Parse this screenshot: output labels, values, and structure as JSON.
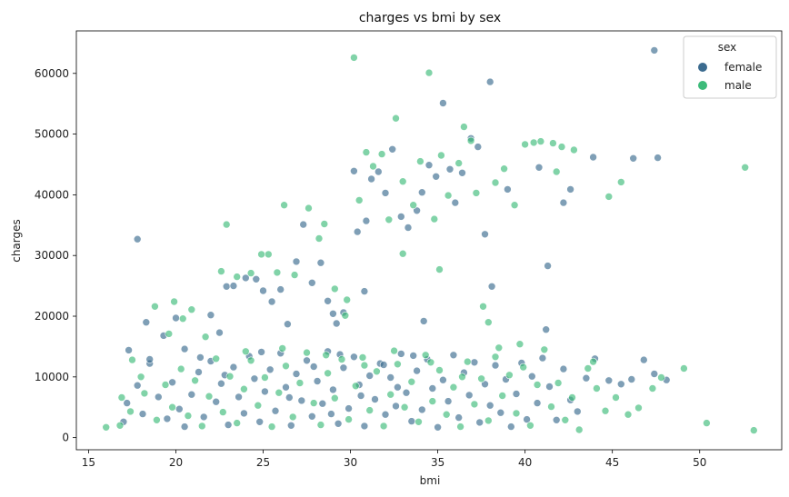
{
  "chart_data": {
    "type": "scatter",
    "title": "charges vs bmi by sex",
    "xlabel": "bmi",
    "ylabel": "charges",
    "xlim": [
      14.3,
      54.7
    ],
    "ylim": [
      -2000,
      67000
    ],
    "xticks": [
      15,
      20,
      25,
      30,
      35,
      40,
      45,
      50
    ],
    "yticks": [
      0,
      10000,
      20000,
      30000,
      40000,
      50000,
      60000
    ],
    "grid": false,
    "legend": {
      "title": "sex",
      "placement": "top-right"
    },
    "series": [
      {
        "name": "female",
        "color": "#3b6b8f",
        "points": [
          [
            17.3,
            14400
          ],
          [
            17.8,
            32700
          ],
          [
            18.3,
            19000
          ],
          [
            18.5,
            12200
          ],
          [
            19.3,
            16800
          ],
          [
            20.0,
            19700
          ],
          [
            20.5,
            14600
          ],
          [
            21.4,
            13200
          ],
          [
            22.0,
            20200
          ],
          [
            22.5,
            17300
          ],
          [
            22.9,
            24900
          ],
          [
            23.3,
            25000
          ],
          [
            24.0,
            26300
          ],
          [
            24.6,
            26100
          ],
          [
            25.0,
            24200
          ],
          [
            25.5,
            22400
          ],
          [
            26.0,
            24400
          ],
          [
            26.4,
            18700
          ],
          [
            26.9,
            29000
          ],
          [
            27.3,
            35100
          ],
          [
            27.8,
            25500
          ],
          [
            28.3,
            28800
          ],
          [
            28.7,
            22500
          ],
          [
            29.2,
            18800
          ],
          [
            29.6,
            20600
          ],
          [
            30.2,
            43900
          ],
          [
            30.4,
            33900
          ],
          [
            30.9,
            35700
          ],
          [
            31.2,
            42600
          ],
          [
            31.6,
            43800
          ],
          [
            32.0,
            40300
          ],
          [
            32.4,
            47500
          ],
          [
            32.9,
            36400
          ],
          [
            33.3,
            34600
          ],
          [
            33.8,
            37400
          ],
          [
            34.1,
            40400
          ],
          [
            34.5,
            44900
          ],
          [
            34.9,
            43000
          ],
          [
            35.3,
            55100
          ],
          [
            35.7,
            44200
          ],
          [
            36.0,
            38700
          ],
          [
            36.4,
            43600
          ],
          [
            36.9,
            49300
          ],
          [
            37.3,
            47900
          ],
          [
            37.7,
            33500
          ],
          [
            38.0,
            58600
          ],
          [
            38.1,
            24900
          ],
          [
            39.0,
            40900
          ],
          [
            40.8,
            44500
          ],
          [
            41.3,
            28300
          ],
          [
            42.2,
            38700
          ],
          [
            42.6,
            40900
          ],
          [
            43.9,
            46200
          ],
          [
            46.2,
            46000
          ],
          [
            47.4,
            63800
          ],
          [
            47.6,
            46100
          ],
          [
            41.2,
            17800
          ],
          [
            34.2,
            19200
          ],
          [
            30.8,
            24100
          ],
          [
            29.0,
            20400
          ],
          [
            17.0,
            2600
          ],
          [
            17.2,
            5700
          ],
          [
            17.8,
            8600
          ],
          [
            18.1,
            3900
          ],
          [
            18.5,
            12900
          ],
          [
            19.0,
            6700
          ],
          [
            19.5,
            3100
          ],
          [
            19.8,
            9100
          ],
          [
            20.2,
            4700
          ],
          [
            20.5,
            1800
          ],
          [
            20.9,
            7100
          ],
          [
            21.3,
            10800
          ],
          [
            21.6,
            3400
          ],
          [
            22.0,
            12600
          ],
          [
            22.3,
            5900
          ],
          [
            22.6,
            8900
          ],
          [
            23.0,
            2100
          ],
          [
            23.3,
            11600
          ],
          [
            23.6,
            6700
          ],
          [
            23.9,
            4000
          ],
          [
            24.2,
            13400
          ],
          [
            24.5,
            9700
          ],
          [
            24.8,
            2600
          ],
          [
            25.1,
            7600
          ],
          [
            25.4,
            11200
          ],
          [
            25.7,
            4400
          ],
          [
            26.0,
            13900
          ],
          [
            26.3,
            8300
          ],
          [
            26.6,
            2000
          ],
          [
            26.9,
            10500
          ],
          [
            27.2,
            6100
          ],
          [
            27.5,
            12700
          ],
          [
            27.8,
            3500
          ],
          [
            28.1,
            9300
          ],
          [
            28.4,
            5600
          ],
          [
            28.7,
            14200
          ],
          [
            29.0,
            7900
          ],
          [
            29.3,
            2300
          ],
          [
            29.6,
            11500
          ],
          [
            29.9,
            4800
          ],
          [
            30.2,
            13300
          ],
          [
            30.5,
            8700
          ],
          [
            30.8,
            1900
          ],
          [
            31.1,
            10200
          ],
          [
            31.4,
            6300
          ],
          [
            31.7,
            12200
          ],
          [
            32.0,
            3800
          ],
          [
            32.3,
            9900
          ],
          [
            32.6,
            5200
          ],
          [
            32.9,
            13800
          ],
          [
            33.2,
            7400
          ],
          [
            33.5,
            2700
          ],
          [
            33.8,
            11000
          ],
          [
            34.1,
            4600
          ],
          [
            34.4,
            12900
          ],
          [
            34.7,
            8100
          ],
          [
            35.0,
            1700
          ],
          [
            35.3,
            9500
          ],
          [
            35.6,
            6000
          ],
          [
            35.9,
            13600
          ],
          [
            36.2,
            3300
          ],
          [
            36.5,
            10700
          ],
          [
            36.8,
            7000
          ],
          [
            37.1,
            12400
          ],
          [
            37.4,
            2500
          ],
          [
            37.7,
            8800
          ],
          [
            38.0,
            5300
          ],
          [
            38.3,
            11900
          ],
          [
            38.6,
            4100
          ],
          [
            38.9,
            9600
          ],
          [
            39.2,
            1800
          ],
          [
            39.5,
            7200
          ],
          [
            39.8,
            12300
          ],
          [
            40.1,
            3000
          ],
          [
            40.4,
            10100
          ],
          [
            40.7,
            5700
          ],
          [
            41.0,
            13100
          ],
          [
            41.4,
            8400
          ],
          [
            41.8,
            2900
          ],
          [
            42.2,
            11300
          ],
          [
            42.6,
            6200
          ],
          [
            43.0,
            4300
          ],
          [
            43.5,
            9800
          ],
          [
            44.0,
            13000
          ],
          [
            44.8,
            9400
          ],
          [
            45.5,
            8800
          ],
          [
            46.1,
            9600
          ],
          [
            46.8,
            12800
          ],
          [
            47.4,
            10500
          ],
          [
            48.1,
            9500
          ],
          [
            26.5,
            6600
          ],
          [
            27.9,
            11700
          ],
          [
            29.4,
            13700
          ],
          [
            31.9,
            12000
          ],
          [
            33.6,
            13500
          ],
          [
            24.9,
            14100
          ],
          [
            22.8,
            10300
          ],
          [
            30.6,
            6900
          ],
          [
            32.7,
            8300
          ],
          [
            28.9,
            3900
          ]
        ]
      },
      {
        "name": "male",
        "color": "#3dbb7a",
        "points": [
          [
            16.0,
            1700
          ],
          [
            16.9,
            6600
          ],
          [
            17.5,
            12800
          ],
          [
            18.0,
            10000
          ],
          [
            18.8,
            21600
          ],
          [
            19.6,
            17100
          ],
          [
            19.9,
            22400
          ],
          [
            20.4,
            19600
          ],
          [
            20.9,
            21100
          ],
          [
            21.7,
            16600
          ],
          [
            22.6,
            27400
          ],
          [
            22.9,
            35100
          ],
          [
            23.5,
            26500
          ],
          [
            24.3,
            27100
          ],
          [
            24.9,
            30200
          ],
          [
            25.3,
            30200
          ],
          [
            25.8,
            27200
          ],
          [
            26.2,
            38300
          ],
          [
            26.8,
            26800
          ],
          [
            27.6,
            37800
          ],
          [
            28.2,
            32800
          ],
          [
            28.5,
            35200
          ],
          [
            29.1,
            24500
          ],
          [
            29.8,
            22700
          ],
          [
            30.2,
            62600
          ],
          [
            30.5,
            39100
          ],
          [
            30.9,
            47000
          ],
          [
            31.3,
            44700
          ],
          [
            31.8,
            46700
          ],
          [
            32.2,
            35900
          ],
          [
            32.6,
            52600
          ],
          [
            33.0,
            42200
          ],
          [
            33.6,
            38300
          ],
          [
            34.0,
            45500
          ],
          [
            34.5,
            60100
          ],
          [
            34.8,
            36000
          ],
          [
            35.2,
            46500
          ],
          [
            35.6,
            39900
          ],
          [
            36.2,
            45200
          ],
          [
            36.5,
            51200
          ],
          [
            36.9,
            48900
          ],
          [
            37.2,
            40300
          ],
          [
            37.6,
            21600
          ],
          [
            38.3,
            42000
          ],
          [
            38.8,
            44300
          ],
          [
            39.4,
            38300
          ],
          [
            40.0,
            48300
          ],
          [
            40.5,
            48600
          ],
          [
            40.9,
            48800
          ],
          [
            41.6,
            48500
          ],
          [
            42.1,
            47900
          ],
          [
            42.8,
            47400
          ],
          [
            41.8,
            43800
          ],
          [
            44.8,
            39700
          ],
          [
            45.5,
            42100
          ],
          [
            52.6,
            44500
          ],
          [
            35.1,
            27700
          ],
          [
            33.0,
            30300
          ],
          [
            29.7,
            20100
          ],
          [
            37.9,
            19000
          ],
          [
            16.8,
            2000
          ],
          [
            17.4,
            4300
          ],
          [
            18.2,
            7300
          ],
          [
            18.9,
            2900
          ],
          [
            19.4,
            8700
          ],
          [
            19.8,
            5000
          ],
          [
            20.3,
            11300
          ],
          [
            20.7,
            3600
          ],
          [
            21.1,
            9400
          ],
          [
            21.5,
            1900
          ],
          [
            21.9,
            6800
          ],
          [
            22.3,
            13000
          ],
          [
            22.7,
            4200
          ],
          [
            23.1,
            10100
          ],
          [
            23.5,
            2400
          ],
          [
            23.9,
            8000
          ],
          [
            24.3,
            12700
          ],
          [
            24.7,
            5300
          ],
          [
            25.1,
            9900
          ],
          [
            25.5,
            1800
          ],
          [
            25.9,
            7400
          ],
          [
            26.3,
            11800
          ],
          [
            26.7,
            3400
          ],
          [
            27.1,
            9000
          ],
          [
            27.5,
            14000
          ],
          [
            27.9,
            5700
          ],
          [
            28.3,
            2100
          ],
          [
            28.7,
            10600
          ],
          [
            29.1,
            6500
          ],
          [
            29.5,
            12900
          ],
          [
            29.9,
            3000
          ],
          [
            30.3,
            8500
          ],
          [
            30.7,
            13200
          ],
          [
            31.1,
            4500
          ],
          [
            31.5,
            10900
          ],
          [
            31.9,
            1900
          ],
          [
            32.3,
            7100
          ],
          [
            32.7,
            12100
          ],
          [
            33.1,
            5000
          ],
          [
            33.5,
            9200
          ],
          [
            33.9,
            2600
          ],
          [
            34.3,
            13600
          ],
          [
            34.7,
            6000
          ],
          [
            35.1,
            11100
          ],
          [
            35.5,
            3800
          ],
          [
            35.9,
            8300
          ],
          [
            36.3,
            1800
          ],
          [
            36.7,
            12500
          ],
          [
            37.1,
            5500
          ],
          [
            37.5,
            9700
          ],
          [
            37.9,
            2800
          ],
          [
            38.3,
            13300
          ],
          [
            38.7,
            6900
          ],
          [
            39.1,
            10300
          ],
          [
            39.5,
            4000
          ],
          [
            39.9,
            11600
          ],
          [
            40.3,
            2000
          ],
          [
            40.7,
            8700
          ],
          [
            41.1,
            14500
          ],
          [
            41.5,
            5100
          ],
          [
            41.9,
            9000
          ],
          [
            42.3,
            2900
          ],
          [
            42.7,
            6600
          ],
          [
            43.1,
            1300
          ],
          [
            43.6,
            11400
          ],
          [
            44.1,
            8100
          ],
          [
            44.6,
            4400
          ],
          [
            45.2,
            6600
          ],
          [
            45.9,
            3800
          ],
          [
            46.5,
            4900
          ],
          [
            47.3,
            8100
          ],
          [
            47.8,
            9900
          ],
          [
            49.1,
            11400
          ],
          [
            50.4,
            2400
          ],
          [
            53.1,
            1200
          ],
          [
            26.1,
            14700
          ],
          [
            28.6,
            13600
          ],
          [
            30.8,
            11900
          ],
          [
            32.5,
            14300
          ],
          [
            34.6,
            12400
          ],
          [
            36.4,
            10000
          ],
          [
            38.5,
            14800
          ],
          [
            24.0,
            14200
          ],
          [
            39.7,
            15400
          ],
          [
            43.9,
            12500
          ]
        ]
      }
    ]
  }
}
